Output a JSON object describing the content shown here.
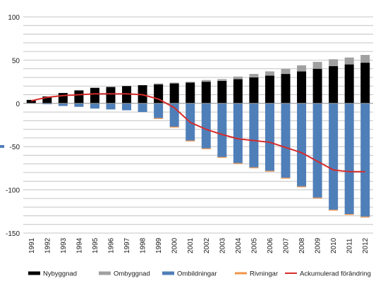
{
  "chart_data": {
    "type": "bar",
    "stacked": true,
    "categories": [
      "1991",
      "1992",
      "1993",
      "1994",
      "1995",
      "1996",
      "1997",
      "1998",
      "1999",
      "2000",
      "2001",
      "2002",
      "2003",
      "2004",
      "2005",
      "2006",
      "2007",
      "2008",
      "2009",
      "2010",
      "2011",
      "2012"
    ],
    "ylim": [
      -150,
      100
    ],
    "yticks": [
      "100",
      "50",
      "0",
      "-50",
      "-100",
      "-150"
    ],
    "grid": true,
    "legend_position": "bottom",
    "series": [
      {
        "name": "Nybyggnad",
        "color": "#000000",
        "kind": "bar",
        "values": [
          4,
          8,
          12,
          15,
          18,
          19,
          20,
          21,
          22,
          23,
          24,
          25,
          26,
          28,
          30,
          32,
          34,
          37,
          40,
          43,
          45,
          47
        ]
      },
      {
        "name": "Ombyggnad",
        "color": "#a0a0a0",
        "kind": "bar",
        "values": [
          0,
          0,
          0,
          0,
          0,
          0,
          0,
          0,
          1,
          1,
          1,
          2,
          2,
          3,
          4,
          5,
          6,
          7,
          8,
          8,
          8,
          9
        ]
      },
      {
        "name": "Ombildningar",
        "color": "#4f7fb8",
        "kind": "bar",
        "values": [
          0,
          -1,
          -3,
          -4,
          -6,
          -7,
          -8,
          -10,
          -17,
          -27,
          -43,
          -52,
          -62,
          -69,
          -74,
          -78,
          -86,
          -96,
          -109,
          -123,
          -128,
          -131
        ]
      },
      {
        "name": "Rivningar",
        "color": "#f0944a",
        "kind": "bar",
        "values": [
          0,
          0,
          0,
          0,
          0,
          0,
          0,
          0,
          -1,
          -1,
          -1,
          -1,
          -1,
          -1,
          -1,
          -1,
          -1,
          -1,
          -1,
          -1,
          -1,
          -1
        ]
      },
      {
        "name": "Ackumulerad förändring",
        "color": "#d52b2b",
        "kind": "line",
        "values": [
          3,
          7,
          9,
          10,
          11,
          11,
          11,
          10,
          5,
          -5,
          -22,
          -30,
          -36,
          -41,
          -43,
          -45,
          -51,
          -57,
          -67,
          -77,
          -79,
          -79
        ]
      }
    ]
  }
}
